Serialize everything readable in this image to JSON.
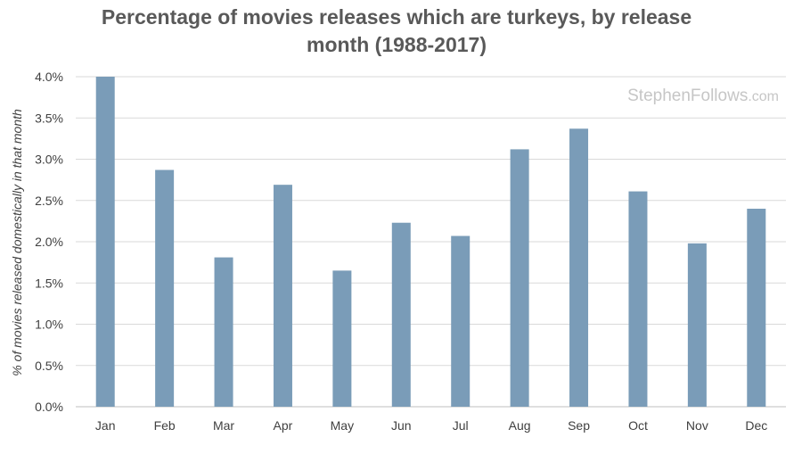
{
  "chart_data": {
    "type": "bar",
    "title_lines": [
      "Percentage of movies releases which are turkeys, by release",
      "month (1988-2017)"
    ],
    "xlabel": "",
    "ylabel": "% of movies released domestically in that month",
    "categories": [
      "Jan",
      "Feb",
      "Mar",
      "Apr",
      "May",
      "Jun",
      "Jul",
      "Aug",
      "Sep",
      "Oct",
      "Nov",
      "Dec"
    ],
    "values": [
      4.0,
      2.87,
      1.81,
      2.69,
      1.65,
      2.23,
      2.07,
      3.12,
      3.37,
      2.61,
      1.98,
      2.4
    ],
    "ylim": [
      0,
      4
    ],
    "yticks": [
      0,
      0.5,
      1.0,
      1.5,
      2.0,
      2.5,
      3.0,
      3.5,
      4.0
    ],
    "ytick_labels": [
      "0.0%",
      "0.5%",
      "1.0%",
      "1.5%",
      "2.0%",
      "2.5%",
      "3.0%",
      "3.5%",
      "4.0%"
    ],
    "grid": true,
    "legend": "none",
    "bar_color": "#7a9cb8",
    "grid_color": "#d9d9d9",
    "axis_color": "#bfbfbf"
  },
  "watermark": {
    "brand": "StephenFollows",
    "suffix": ".com"
  }
}
